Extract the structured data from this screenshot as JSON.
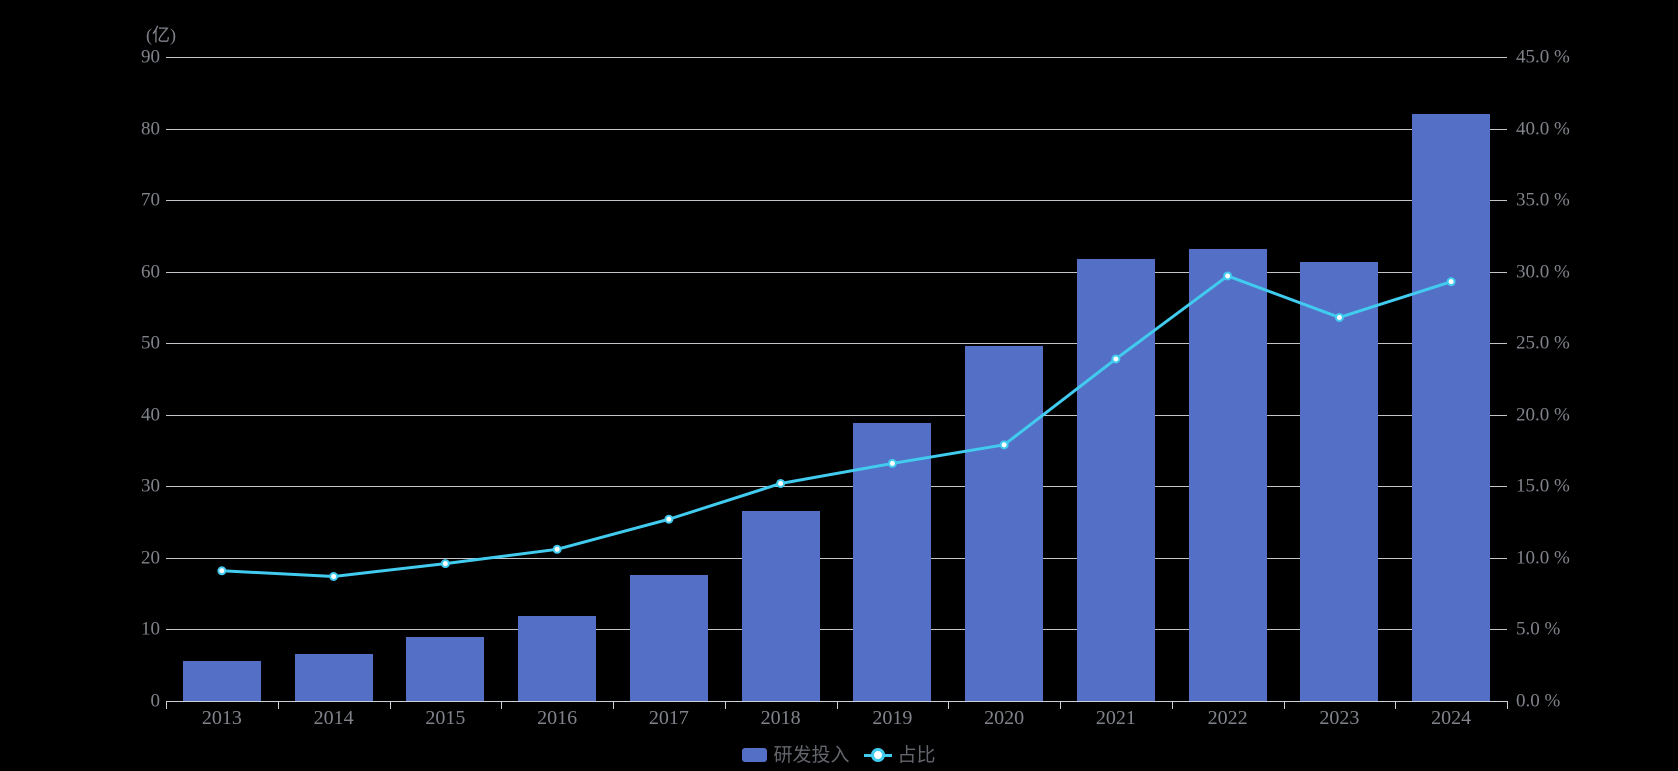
{
  "chart_data": {
    "type": "bar",
    "overlay": "line",
    "unit_label": "(亿)",
    "categories": [
      "2013",
      "2014",
      "2015",
      "2016",
      "2017",
      "2018",
      "2019",
      "2020",
      "2021",
      "2022",
      "2023",
      "2024"
    ],
    "series": [
      {
        "name": "研发投入",
        "type": "bar",
        "axis": "left",
        "unit": "亿",
        "color": "#5470C6",
        "values": [
          5.6,
          6.6,
          9.0,
          11.9,
          17.6,
          26.6,
          38.9,
          49.6,
          61.8,
          63.2,
          61.4,
          82.0
        ]
      },
      {
        "name": "占比",
        "type": "line",
        "axis": "right",
        "unit": "%",
        "color": "#41CBEF",
        "values": [
          9.1,
          8.7,
          9.6,
          10.6,
          12.7,
          15.2,
          16.6,
          17.9,
          23.9,
          29.7,
          26.8,
          29.3
        ]
      }
    ],
    "left_axis": {
      "unit": "(亿)",
      "min": 0,
      "max": 90,
      "step": 10,
      "tick_labels": [
        "0",
        "10",
        "20",
        "30",
        "40",
        "50",
        "60",
        "70",
        "80",
        "90"
      ]
    },
    "right_axis": {
      "min": 0,
      "max": 45,
      "step": 5,
      "tick_labels": [
        "0.0 %",
        "5.0 %",
        "10.0 %",
        "15.0 %",
        "20.0 %",
        "25.0 %",
        "30.0 %",
        "35.0 %",
        "40.0 %",
        "45.0 %"
      ]
    },
    "grid": "horizontal gridlines on",
    "legend_position": "bottom-center",
    "background": "#000000"
  },
  "colors": {
    "background": "#000000",
    "bar": "#5470C6",
    "line": "#41CBEF",
    "marker_fill": "#FFFFFF",
    "gridline": "#E3E6EC",
    "axis_line": "#CBD0D8",
    "tick_text": "#80838B",
    "legend_text": "#63666C"
  }
}
